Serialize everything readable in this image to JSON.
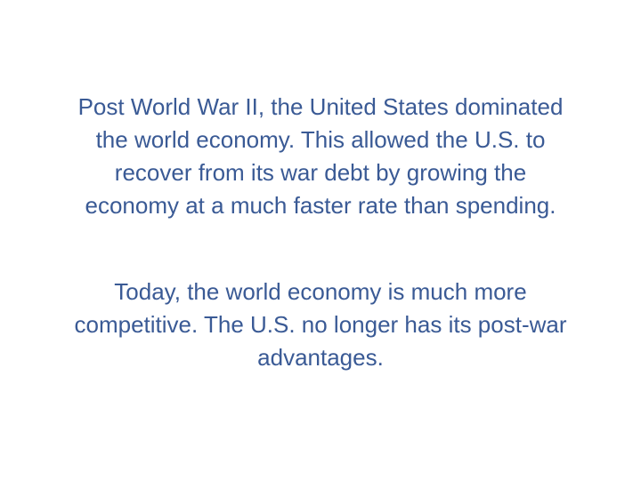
{
  "slide": {
    "paragraphs": [
      "Post World War II, the United States dominated\nthe world economy. This allowed the U.S. to\nrecover from its war debt by growing the\neconomy at a much faster rate than spending.",
      "Today, the world economy is much more\ncompetitive. The U.S. no longer has its post-war\nadvantages."
    ],
    "text_color": "#3a5a95",
    "background_color": "#ffffff"
  }
}
